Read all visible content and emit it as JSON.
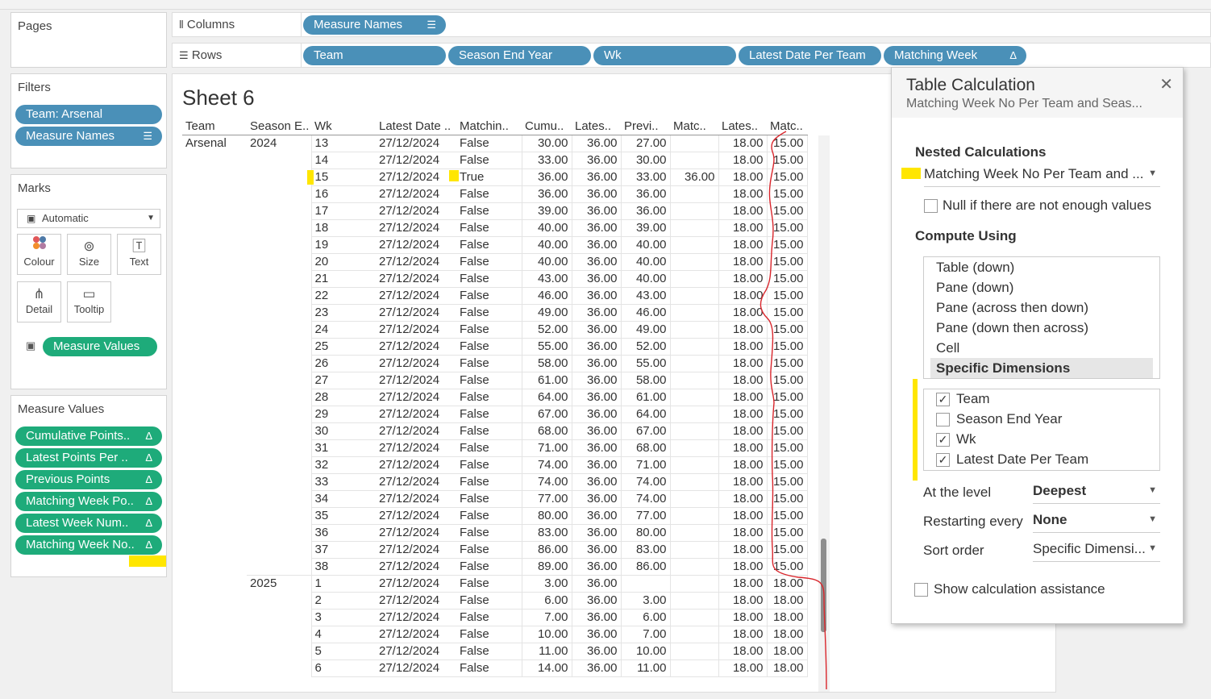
{
  "shelves": {
    "pages_label": "Pages",
    "filters_label": "Filters",
    "columns_label": "Columns",
    "rows_label": "Rows",
    "columns_pills": [
      "Measure Names"
    ],
    "rows_pills": [
      "Team",
      "Season End Year",
      "Wk",
      "Latest Date Per Team",
      "Matching Week"
    ],
    "filter_pills": [
      "Team: Arsenal",
      "Measure Names"
    ]
  },
  "marks": {
    "title": "Marks",
    "mark_type": "Automatic",
    "buttons": [
      "Colour",
      "Size",
      "Text",
      "Detail",
      "Tooltip"
    ],
    "text_pill": "Measure Values"
  },
  "measure_values": {
    "title": "Measure Values",
    "pills": [
      "Cumulative Points..",
      "Latest Points Per ..",
      "Previous Points",
      "Matching Week Po..",
      "Latest Week Num..",
      "Matching Week No.."
    ]
  },
  "sheet": {
    "title": "Sheet 6",
    "headers": [
      "Team",
      "Season E..",
      "Wk",
      "Latest Date ..",
      "Matchin..",
      "Cumu..",
      "Lates..",
      "Previ..",
      "Matc..",
      "Lates..",
      "Matc.."
    ],
    "team": "Arsenal",
    "rows": [
      [
        "2024",
        "13",
        "27/12/2024",
        "False",
        "30.00",
        "36.00",
        "27.00",
        "",
        "18.00",
        "15.00"
      ],
      [
        "",
        "14",
        "27/12/2024",
        "False",
        "33.00",
        "36.00",
        "30.00",
        "",
        "18.00",
        "15.00"
      ],
      [
        "",
        "15",
        "27/12/2024",
        "True",
        "36.00",
        "36.00",
        "33.00",
        "36.00",
        "18.00",
        "15.00"
      ],
      [
        "",
        "16",
        "27/12/2024",
        "False",
        "36.00",
        "36.00",
        "36.00",
        "",
        "18.00",
        "15.00"
      ],
      [
        "",
        "17",
        "27/12/2024",
        "False",
        "39.00",
        "36.00",
        "36.00",
        "",
        "18.00",
        "15.00"
      ],
      [
        "",
        "18",
        "27/12/2024",
        "False",
        "40.00",
        "36.00",
        "39.00",
        "",
        "18.00",
        "15.00"
      ],
      [
        "",
        "19",
        "27/12/2024",
        "False",
        "40.00",
        "36.00",
        "40.00",
        "",
        "18.00",
        "15.00"
      ],
      [
        "",
        "20",
        "27/12/2024",
        "False",
        "40.00",
        "36.00",
        "40.00",
        "",
        "18.00",
        "15.00"
      ],
      [
        "",
        "21",
        "27/12/2024",
        "False",
        "43.00",
        "36.00",
        "40.00",
        "",
        "18.00",
        "15.00"
      ],
      [
        "",
        "22",
        "27/12/2024",
        "False",
        "46.00",
        "36.00",
        "43.00",
        "",
        "18.00",
        "15.00"
      ],
      [
        "",
        "23",
        "27/12/2024",
        "False",
        "49.00",
        "36.00",
        "46.00",
        "",
        "18.00",
        "15.00"
      ],
      [
        "",
        "24",
        "27/12/2024",
        "False",
        "52.00",
        "36.00",
        "49.00",
        "",
        "18.00",
        "15.00"
      ],
      [
        "",
        "25",
        "27/12/2024",
        "False",
        "55.00",
        "36.00",
        "52.00",
        "",
        "18.00",
        "15.00"
      ],
      [
        "",
        "26",
        "27/12/2024",
        "False",
        "58.00",
        "36.00",
        "55.00",
        "",
        "18.00",
        "15.00"
      ],
      [
        "",
        "27",
        "27/12/2024",
        "False",
        "61.00",
        "36.00",
        "58.00",
        "",
        "18.00",
        "15.00"
      ],
      [
        "",
        "28",
        "27/12/2024",
        "False",
        "64.00",
        "36.00",
        "61.00",
        "",
        "18.00",
        "15.00"
      ],
      [
        "",
        "29",
        "27/12/2024",
        "False",
        "67.00",
        "36.00",
        "64.00",
        "",
        "18.00",
        "15.00"
      ],
      [
        "",
        "30",
        "27/12/2024",
        "False",
        "68.00",
        "36.00",
        "67.00",
        "",
        "18.00",
        "15.00"
      ],
      [
        "",
        "31",
        "27/12/2024",
        "False",
        "71.00",
        "36.00",
        "68.00",
        "",
        "18.00",
        "15.00"
      ],
      [
        "",
        "32",
        "27/12/2024",
        "False",
        "74.00",
        "36.00",
        "71.00",
        "",
        "18.00",
        "15.00"
      ],
      [
        "",
        "33",
        "27/12/2024",
        "False",
        "74.00",
        "36.00",
        "74.00",
        "",
        "18.00",
        "15.00"
      ],
      [
        "",
        "34",
        "27/12/2024",
        "False",
        "77.00",
        "36.00",
        "74.00",
        "",
        "18.00",
        "15.00"
      ],
      [
        "",
        "35",
        "27/12/2024",
        "False",
        "80.00",
        "36.00",
        "77.00",
        "",
        "18.00",
        "15.00"
      ],
      [
        "",
        "36",
        "27/12/2024",
        "False",
        "83.00",
        "36.00",
        "80.00",
        "",
        "18.00",
        "15.00"
      ],
      [
        "",
        "37",
        "27/12/2024",
        "False",
        "86.00",
        "36.00",
        "83.00",
        "",
        "18.00",
        "15.00"
      ],
      [
        "",
        "38",
        "27/12/2024",
        "False",
        "89.00",
        "36.00",
        "86.00",
        "",
        "18.00",
        "15.00"
      ],
      [
        "2025",
        "1",
        "27/12/2024",
        "False",
        "3.00",
        "36.00",
        "",
        "",
        "18.00",
        "18.00"
      ],
      [
        "",
        "2",
        "27/12/2024",
        "False",
        "6.00",
        "36.00",
        "3.00",
        "",
        "18.00",
        "18.00"
      ],
      [
        "",
        "3",
        "27/12/2024",
        "False",
        "7.00",
        "36.00",
        "6.00",
        "",
        "18.00",
        "18.00"
      ],
      [
        "",
        "4",
        "27/12/2024",
        "False",
        "10.00",
        "36.00",
        "7.00",
        "",
        "18.00",
        "18.00"
      ],
      [
        "",
        "5",
        "27/12/2024",
        "False",
        "11.00",
        "36.00",
        "10.00",
        "",
        "18.00",
        "18.00"
      ],
      [
        "",
        "6",
        "27/12/2024",
        "False",
        "14.00",
        "36.00",
        "11.00",
        "",
        "18.00",
        "18.00"
      ]
    ]
  },
  "dialog": {
    "title": "Table Calculation",
    "subtitle": "Matching Week No Per Team and Seas...",
    "nested_heading": "Nested Calculations",
    "nested_value": "Matching Week No Per Team and ...",
    "null_label": "Null if there are not enough values",
    "compute_heading": "Compute Using",
    "compute_options": [
      "Table (down)",
      "Pane (down)",
      "Pane (across then down)",
      "Pane (down then across)",
      "Cell",
      "Specific Dimensions"
    ],
    "dimensions": [
      {
        "label": "Team",
        "checked": true
      },
      {
        "label": "Season End Year",
        "checked": false
      },
      {
        "label": "Wk",
        "checked": true
      },
      {
        "label": "Latest Date Per Team",
        "checked": true
      }
    ],
    "level_label": "At the level",
    "level_value": "Deepest",
    "restart_label": "Restarting every",
    "restart_value": "None",
    "sort_label": "Sort order",
    "sort_value": "Specific Dimensi...",
    "assist_label": "Show calculation assistance"
  },
  "colors": {
    "blue_pill": "#4a90b8",
    "green_pill": "#1eab7a",
    "highlight": "#ffe600",
    "annotation_line": "#d9262c"
  },
  "icons": {
    "columns": "columns-icon",
    "rows": "rows-icon",
    "sort": "sort-icon",
    "delta": "delta-icon",
    "close": "close-icon"
  }
}
